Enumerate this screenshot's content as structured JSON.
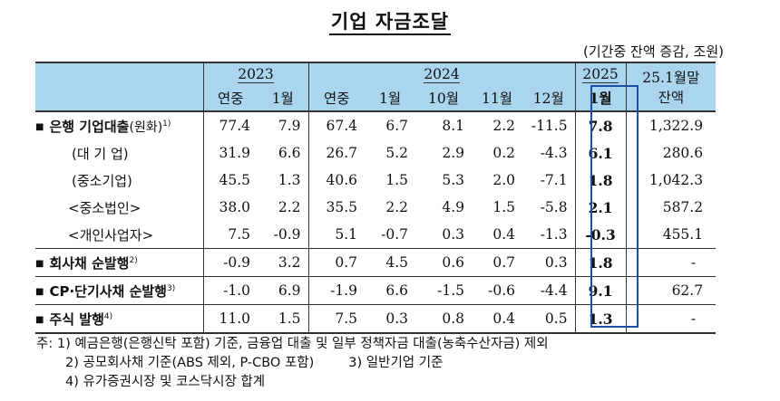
{
  "title": "기업 자금조달",
  "unit_note": "(기간중 잔액 증감, 조원)",
  "header": {
    "y2023": "2023",
    "y2024": "2024",
    "y2025": "2025",
    "balance_line1": "25.1월말",
    "balance_line2": "잔액",
    "cols": [
      "연중",
      "1월",
      "연중",
      "1월",
      "10월",
      "11월",
      "12월",
      "1월"
    ]
  },
  "rows": [
    {
      "label": "은행 기업대출",
      "label_sub": "(원화)",
      "sup": "1)",
      "values": [
        "77.4",
        "7.9",
        "67.4",
        "6.7",
        "8.1",
        "2.2",
        "-11.5",
        "7.8",
        "1,322.9"
      ]
    },
    {
      "label": "(대 기 업)",
      "values": [
        "31.9",
        "6.6",
        "26.7",
        "5.2",
        "2.9",
        "0.2",
        "-4.3",
        "6.1",
        "280.6"
      ]
    },
    {
      "label": "(중소기업)",
      "values": [
        "45.5",
        "1.3",
        "40.6",
        "1.5",
        "5.3",
        "2.0",
        "-7.1",
        "1.8",
        "1,042.3"
      ]
    },
    {
      "label": "<중소법인>",
      "values": [
        "38.0",
        "2.2",
        "35.5",
        "2.2",
        "4.9",
        "1.5",
        "-5.8",
        "2.1",
        "587.2"
      ]
    },
    {
      "label": "<개인사업자>",
      "values": [
        "7.5",
        "-0.9",
        "5.1",
        "-0.7",
        "0.3",
        "0.4",
        "-1.3",
        "-0.3",
        "455.1"
      ]
    },
    {
      "label": "회사채 순발행",
      "sup": "2)",
      "values": [
        "-0.9",
        "3.2",
        "0.7",
        "4.5",
        "0.6",
        "0.7",
        "0.3",
        "1.8",
        "-"
      ]
    },
    {
      "label": "CP·단기사채 순발행",
      "sup": "3)",
      "values": [
        "-1.0",
        "6.9",
        "-1.9",
        "6.6",
        "-1.5",
        "-0.6",
        "-4.4",
        "9.1",
        "62.7"
      ]
    },
    {
      "label": "주식 발행",
      "sup": "4)",
      "values": [
        "11.0",
        "1.5",
        "7.5",
        "0.3",
        "0.8",
        "0.4",
        "0.5",
        "1.3",
        "-"
      ]
    }
  ],
  "notes": {
    "prefix": "주:",
    "n1": "1) 예금은행(은행신탁 포함) 기준, 금융업 대출 및 일부 정책자금 대출(농축수산자금) 제외",
    "n2": "2) 공모회사채 기준(ABS 제외, P-CBO 포함)",
    "n3": "3) 일반기업 기준",
    "n4": "4) 유가증권시장 및 코스닥시장 합계"
  }
}
